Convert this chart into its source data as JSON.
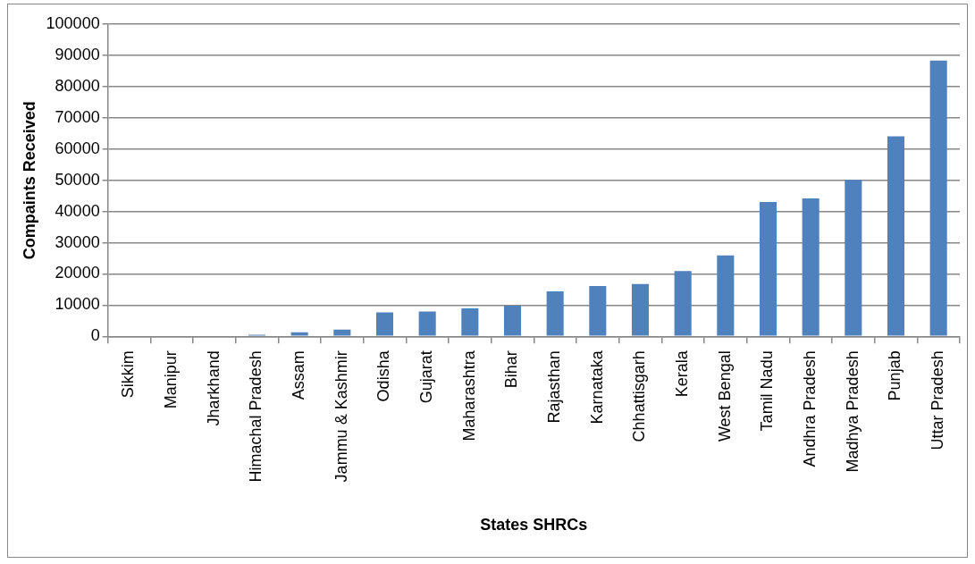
{
  "chart_data": {
    "type": "bar",
    "xlabel": "States SHRCs",
    "ylabel": "Compaints Received",
    "categories": [
      "Sikkim",
      "Manipur",
      "Jharkhand",
      "Himachal Pradesh",
      "Assam",
      "Jammu & Kashmir",
      "Odisha",
      "Gujarat",
      "Maharashtra",
      "Bihar",
      "Rajasthan",
      "Karnataka",
      "Chhattisgarh",
      "Kerala",
      "West Bengal",
      "Tamil Nadu",
      "Andhra Pradesh",
      "Madhya Pradesh",
      "Punjab",
      "Uttar Pradesh"
    ],
    "values": [
      0,
      0,
      null,
      500,
      1300,
      2200,
      7700,
      8000,
      9000,
      9800,
      14400,
      16100,
      16800,
      20900,
      25900,
      43000,
      44200,
      50100,
      64100,
      88300
    ],
    "color": "#4f81bd",
    "ylim": [
      0,
      100000
    ],
    "yticks": [
      0,
      10000,
      20000,
      30000,
      40000,
      50000,
      60000,
      70000,
      80000,
      90000,
      100000
    ],
    "grid": "y",
    "legend": false
  }
}
